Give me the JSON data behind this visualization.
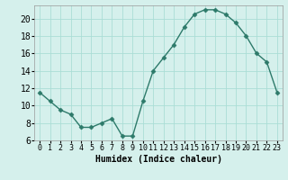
{
  "x": [
    0,
    1,
    2,
    3,
    4,
    5,
    6,
    7,
    8,
    9,
    10,
    11,
    12,
    13,
    14,
    15,
    16,
    17,
    18,
    19,
    20,
    21,
    22,
    23
  ],
  "y": [
    11.5,
    10.5,
    9.5,
    9.0,
    7.5,
    7.5,
    8.0,
    8.5,
    6.5,
    6.5,
    10.5,
    14.0,
    15.5,
    17.0,
    19.0,
    20.5,
    21.0,
    21.0,
    20.5,
    19.5,
    18.0,
    16.0,
    15.0,
    11.5
  ],
  "line_color": "#2d7a6a",
  "marker": "D",
  "marker_size": 2.5,
  "bg_color": "#d5f0ec",
  "grid_color": "#aaddd6",
  "xlabel": "Humidex (Indice chaleur)",
  "xlabel_fontsize": 7,
  "tick_fontsize_x": 6,
  "tick_fontsize_y": 7,
  "xlim": [
    -0.5,
    23.5
  ],
  "ylim": [
    6,
    21.5
  ],
  "yticks": [
    6,
    8,
    10,
    12,
    14,
    16,
    18,
    20
  ],
  "xticks": [
    0,
    1,
    2,
    3,
    4,
    5,
    6,
    7,
    8,
    9,
    10,
    11,
    12,
    13,
    14,
    15,
    16,
    17,
    18,
    19,
    20,
    21,
    22,
    23
  ]
}
